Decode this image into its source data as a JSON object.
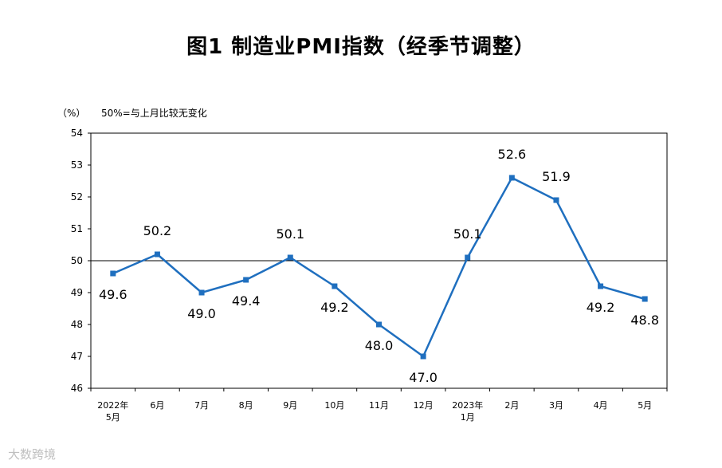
{
  "chart_data": {
    "type": "line",
    "title": "图1 制造业PMI指数（经季节调整）",
    "unit_label": "（%）",
    "note": "50%=与上月比较无变化",
    "categories": [
      [
        "2022年",
        "5月"
      ],
      [
        "6月"
      ],
      [
        "7月"
      ],
      [
        "8月"
      ],
      [
        "9月"
      ],
      [
        "10月"
      ],
      [
        "11月"
      ],
      [
        "12月"
      ],
      [
        "2023年",
        "1月"
      ],
      [
        "2月"
      ],
      [
        "3月"
      ],
      [
        "4月"
      ],
      [
        "5月"
      ]
    ],
    "values": [
      49.6,
      50.2,
      49.0,
      49.4,
      50.1,
      49.2,
      48.0,
      47.0,
      50.1,
      52.6,
      51.9,
      49.2,
      48.8
    ],
    "value_labels": [
      "49.6",
      "50.2",
      "49.0",
      "49.4",
      "50.1",
      "49.2",
      "48.0",
      "47.0",
      "50.1",
      "52.6",
      "51.9",
      "49.2",
      "48.8"
    ],
    "label_positions": [
      "below",
      "above",
      "below",
      "below",
      "above",
      "below",
      "below",
      "below",
      "above",
      "above",
      "above",
      "below",
      "below"
    ],
    "yticks": [
      "46",
      "47",
      "48",
      "49",
      "50",
      "51",
      "52",
      "53",
      "54"
    ],
    "ylim": [
      46,
      54
    ],
    "reference_line": 50,
    "grid": false,
    "line_color": "#1f6fbf"
  },
  "watermark": "大数跨境"
}
